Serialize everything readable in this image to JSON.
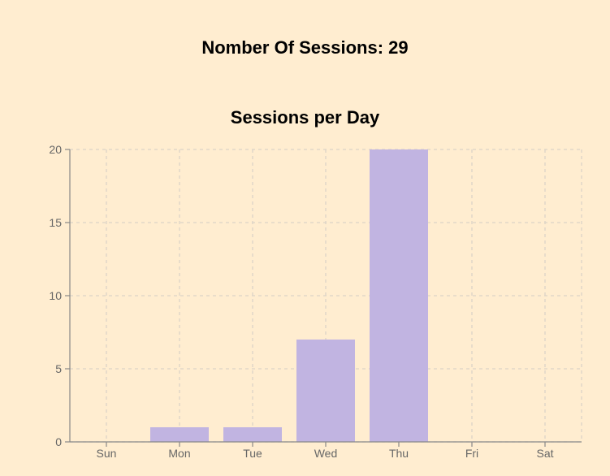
{
  "header": {
    "total_label": "Nomber Of Sessions: 29"
  },
  "colors": {
    "background": "#ffedd0",
    "bar": "#c1b4e1",
    "grid": "#dcd4c6",
    "axis": "#888888",
    "tick_text": "#666666"
  },
  "chart_data": {
    "type": "bar",
    "title": "Sessions per Day",
    "xlabel": "",
    "ylabel": "",
    "categories": [
      "Sun",
      "Mon",
      "Tue",
      "Wed",
      "Thu",
      "Fri",
      "Sat"
    ],
    "values": [
      0,
      1,
      1,
      7,
      20,
      0,
      0
    ],
    "ylim": [
      0,
      20
    ],
    "yticks": [
      0,
      5,
      10,
      15,
      20
    ],
    "grid": true,
    "grid_style": "dashed",
    "legend": "none"
  }
}
